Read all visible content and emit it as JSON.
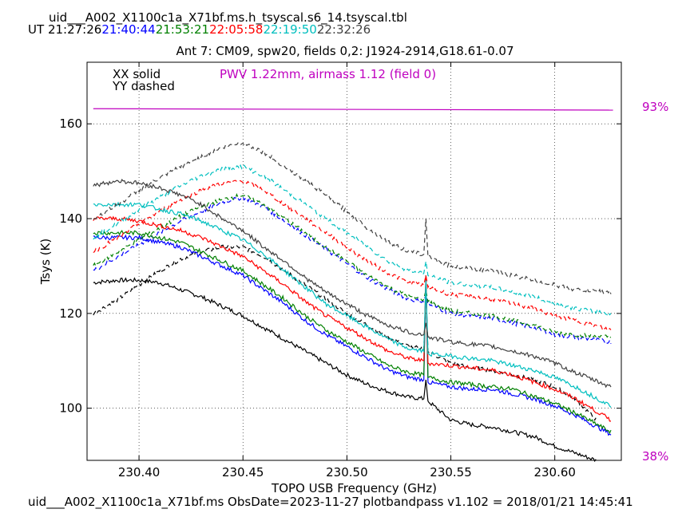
{
  "header": {
    "filename": "uid___A002_X1100c1a_X71bf.ms.h_tsyscal.s6_14.tsyscal.tbl",
    "ut_label": "UT",
    "times": [
      {
        "text": "21:27:26",
        "color": "#000000"
      },
      {
        "text": "21:40:44",
        "color": "#0000ff"
      },
      {
        "text": "21:53:21",
        "color": "#008000"
      },
      {
        "text": "22:05:58",
        "color": "#ff0000"
      },
      {
        "text": "22:19:50",
        "color": "#00bfbf"
      },
      {
        "text": "22:32:26",
        "color": "#404040"
      }
    ]
  },
  "footer": "uid___A002_X1100c1a_X71bf.ms  ObsDate=2023-11-27   plotbandpass v1.102 = 2018/01/21 14:45:41",
  "chart_data": {
    "type": "line",
    "title": "Ant 7: CM09,  spw20,  fields 0,2: J1924-2914,G18.61-0.07",
    "xlabel": "TOPO USB Frequency (GHz)",
    "ylabel": "Tsys (K)",
    "xlim": [
      230.375,
      230.632
    ],
    "ylim": [
      89,
      173
    ],
    "xticks": [
      "230.40",
      "230.45",
      "230.50",
      "230.55",
      "230.60"
    ],
    "yticks": [
      "100",
      "120",
      "140",
      "160"
    ],
    "grid": true,
    "legend_text": [
      "XX solid",
      "YY dashed"
    ],
    "annotation": {
      "text": "PWV 1.22mm, airmass 1.12 (field 0)",
      "color": "#bf00bf"
    },
    "transmission": {
      "color": "#bf00bf",
      "right_labels": [
        "93%",
        "38%"
      ],
      "x": [
        230.378,
        230.628
      ],
      "values": [
        163.2,
        162.9
      ]
    },
    "series": [
      {
        "color": "#000000",
        "style": "solid",
        "x": [
          230.378,
          230.39,
          230.4,
          230.41,
          230.42,
          230.43,
          230.44,
          230.45,
          230.46,
          230.47,
          230.48,
          230.49,
          230.5,
          230.51,
          230.52,
          230.53,
          230.537,
          230.538,
          230.539,
          230.55,
          230.56,
          230.57,
          230.58,
          230.59,
          230.6,
          230.61,
          230.62
        ],
        "y": [
          126.5,
          127,
          127,
          126.5,
          125,
          123.5,
          121.5,
          119.5,
          117,
          114.5,
          112,
          109.5,
          107,
          105,
          103.5,
          102.3,
          102,
          106,
          101.5,
          97.5,
          96.5,
          96,
          95,
          94,
          92,
          90.5,
          89
        ]
      },
      {
        "color": "#000000",
        "style": "dashed",
        "x": [
          230.378,
          230.39,
          230.4,
          230.41,
          230.42,
          230.43,
          230.44,
          230.45,
          230.46,
          230.47,
          230.48,
          230.49,
          230.5,
          230.51,
          230.52,
          230.53,
          230.537,
          230.538,
          230.539,
          230.55,
          230.56,
          230.57,
          230.58,
          230.59,
          230.6,
          230.61,
          230.62
        ],
        "y": [
          120,
          123,
          126,
          129,
          131.5,
          133,
          134,
          134,
          132,
          129,
          126,
          123,
          120,
          117.5,
          115,
          113,
          112.5,
          125,
          112,
          109.5,
          108.5,
          108,
          107,
          106,
          104.5,
          102,
          97.5
        ]
      },
      {
        "color": "#0000ff",
        "style": "solid",
        "x": [
          230.378,
          230.39,
          230.4,
          230.41,
          230.42,
          230.43,
          230.44,
          230.45,
          230.46,
          230.47,
          230.48,
          230.49,
          230.5,
          230.51,
          230.52,
          230.53,
          230.537,
          230.538,
          230.539,
          230.55,
          230.56,
          230.57,
          230.58,
          230.59,
          230.6,
          230.61,
          230.627
        ],
        "y": [
          136,
          136,
          136,
          135,
          134,
          132,
          130,
          128,
          125,
          122,
          118.5,
          115.5,
          113,
          110.5,
          108,
          106.5,
          106,
          128,
          105.5,
          104.5,
          104,
          104,
          103,
          102,
          100.5,
          98.5,
          94.5
        ]
      },
      {
        "color": "#0000ff",
        "style": "dashed",
        "x": [
          230.378,
          230.39,
          230.4,
          230.41,
          230.42,
          230.43,
          230.44,
          230.45,
          230.46,
          230.47,
          230.48,
          230.49,
          230.5,
          230.51,
          230.52,
          230.53,
          230.537,
          230.538,
          230.539,
          230.55,
          230.56,
          230.57,
          230.58,
          230.59,
          230.6,
          230.61,
          230.627
        ],
        "y": [
          129,
          132,
          134.5,
          137,
          139.5,
          141.5,
          143.5,
          144.5,
          142.5,
          139.5,
          136.5,
          133.5,
          130.5,
          127.5,
          125,
          123,
          122.5,
          124,
          122,
          120,
          119.5,
          119,
          118,
          117,
          115.5,
          115,
          114
        ]
      },
      {
        "color": "#008000",
        "style": "solid",
        "x": [
          230.378,
          230.39,
          230.4,
          230.41,
          230.42,
          230.43,
          230.44,
          230.45,
          230.46,
          230.47,
          230.48,
          230.49,
          230.5,
          230.51,
          230.52,
          230.53,
          230.537,
          230.538,
          230.539,
          230.55,
          230.56,
          230.57,
          230.58,
          230.59,
          230.6,
          230.61,
          230.627
        ],
        "y": [
          137,
          137,
          137,
          136,
          135,
          133,
          131,
          129,
          126,
          123,
          119.5,
          116.5,
          114,
          111.5,
          109,
          107.5,
          107,
          128,
          106.5,
          105.5,
          105,
          104.5,
          104,
          102.5,
          101,
          99,
          95
        ]
      },
      {
        "color": "#008000",
        "style": "dashed",
        "x": [
          230.378,
          230.39,
          230.4,
          230.41,
          230.42,
          230.43,
          230.44,
          230.45,
          230.46,
          230.47,
          230.48,
          230.49,
          230.5,
          230.51,
          230.52,
          230.53,
          230.537,
          230.538,
          230.539,
          230.55,
          230.56,
          230.57,
          230.58,
          230.59,
          230.6,
          230.61,
          230.627
        ],
        "y": [
          130,
          133,
          135.5,
          138,
          140.5,
          142.5,
          144,
          145,
          143,
          140,
          137,
          134,
          131,
          128,
          125.5,
          123.5,
          123,
          125,
          122.5,
          120.5,
          120,
          119.5,
          118.5,
          117.5,
          116,
          115.5,
          115
        ]
      },
      {
        "color": "#ff0000",
        "style": "solid",
        "x": [
          230.378,
          230.39,
          230.4,
          230.41,
          230.42,
          230.43,
          230.44,
          230.45,
          230.46,
          230.47,
          230.48,
          230.49,
          230.5,
          230.51,
          230.52,
          230.53,
          230.537,
          230.538,
          230.539,
          230.55,
          230.56,
          230.57,
          230.58,
          230.59,
          230.6,
          230.61,
          230.627
        ],
        "y": [
          140,
          140,
          139.5,
          138.5,
          137.5,
          136,
          134,
          132,
          129,
          126,
          122.5,
          119.5,
          117,
          114.5,
          112,
          110.5,
          110,
          128,
          109.5,
          109,
          108.5,
          108,
          107,
          105.5,
          104,
          102,
          97.5
        ]
      },
      {
        "color": "#ff0000",
        "style": "dashed",
        "x": [
          230.378,
          230.39,
          230.4,
          230.41,
          230.42,
          230.43,
          230.44,
          230.45,
          230.46,
          230.47,
          230.48,
          230.49,
          230.5,
          230.51,
          230.52,
          230.53,
          230.537,
          230.538,
          230.539,
          230.55,
          230.56,
          230.57,
          230.58,
          230.59,
          230.6,
          230.61,
          230.627
        ],
        "y": [
          133,
          136,
          139,
          141.5,
          144,
          146,
          147.5,
          148,
          146,
          143,
          140,
          137,
          134,
          131,
          128.5,
          126.5,
          126,
          128,
          125.5,
          124,
          123.5,
          123,
          122,
          121,
          119.5,
          118.5,
          116.5
        ]
      },
      {
        "color": "#00bfbf",
        "style": "solid",
        "x": [
          230.378,
          230.39,
          230.4,
          230.41,
          230.42,
          230.43,
          230.44,
          230.45,
          230.46,
          230.47,
          230.48,
          230.49,
          230.5,
          230.51,
          230.52,
          230.53,
          230.537,
          230.538,
          230.539,
          230.55,
          230.56,
          230.57,
          230.58,
          230.59,
          230.6,
          230.61,
          230.627
        ],
        "y": [
          143,
          143,
          143,
          142,
          141,
          139.5,
          137.5,
          135.5,
          132.5,
          129,
          125.5,
          122,
          119.5,
          117,
          114.5,
          112.5,
          112,
          127,
          111.5,
          111,
          110.5,
          110,
          109,
          108,
          106.5,
          104.5,
          100.5
        ]
      },
      {
        "color": "#00bfbf",
        "style": "dashed",
        "x": [
          230.378,
          230.39,
          230.4,
          230.41,
          230.42,
          230.43,
          230.44,
          230.45,
          230.46,
          230.47,
          230.48,
          230.49,
          230.5,
          230.51,
          230.52,
          230.53,
          230.537,
          230.538,
          230.539,
          230.55,
          230.56,
          230.57,
          230.58,
          230.59,
          230.6,
          230.61,
          230.627
        ],
        "y": [
          136,
          139,
          142,
          144.5,
          147,
          149,
          150.5,
          151,
          149,
          146,
          143,
          140,
          137,
          134,
          131,
          129,
          128.5,
          131,
          128,
          126.5,
          126,
          125.5,
          124.5,
          123.5,
          122,
          121,
          120
        ]
      },
      {
        "color": "#404040",
        "style": "solid",
        "x": [
          230.378,
          230.39,
          230.4,
          230.41,
          230.42,
          230.43,
          230.44,
          230.45,
          230.46,
          230.47,
          230.48,
          230.49,
          230.5,
          230.51,
          230.52,
          230.53,
          230.537,
          230.538,
          230.539,
          230.55,
          230.56,
          230.57,
          230.58,
          230.59,
          230.6,
          230.61,
          230.627
        ],
        "y": [
          147,
          148,
          147.5,
          146.5,
          145,
          143,
          140,
          137.5,
          134,
          131,
          127.5,
          124.5,
          122,
          119.5,
          117.5,
          116,
          115.5,
          118,
          115,
          114,
          113.5,
          113,
          112,
          111,
          109.5,
          107.5,
          104.5
        ]
      },
      {
        "color": "#404040",
        "style": "dashed",
        "x": [
          230.378,
          230.39,
          230.4,
          230.41,
          230.42,
          230.43,
          230.44,
          230.45,
          230.46,
          230.47,
          230.48,
          230.49,
          230.5,
          230.51,
          230.52,
          230.53,
          230.537,
          230.538,
          230.539,
          230.55,
          230.56,
          230.57,
          230.58,
          230.59,
          230.6,
          230.61,
          230.627
        ],
        "y": [
          140,
          143,
          146,
          148.5,
          151,
          153,
          155,
          156,
          154,
          151,
          148,
          145,
          141.5,
          138,
          135,
          133,
          132.5,
          140,
          132,
          130,
          129.5,
          129,
          128,
          127,
          126,
          125,
          124.5
        ]
      }
    ]
  }
}
